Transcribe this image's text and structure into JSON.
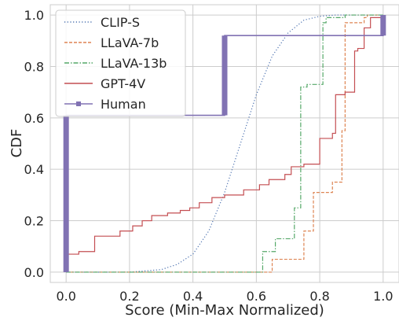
{
  "chart_data": {
    "type": "line",
    "xlabel": "Score (Min-Max Normalized)",
    "ylabel": "CDF",
    "xlim": [
      -0.05,
      1.05
    ],
    "ylim": [
      -0.04,
      1.04
    ],
    "xticks": [
      "0.0",
      "0.2",
      "0.4",
      "0.6",
      "0.8",
      "1.0"
    ],
    "yticks": [
      "0.0",
      "0.2",
      "0.4",
      "0.6",
      "0.8",
      "1.0"
    ],
    "grid": true,
    "legend_position": "upper-left",
    "series": [
      {
        "name": "CLIP-S",
        "style": "dotted",
        "color": "#4c72b0",
        "x": [
          0.0,
          0.2,
          0.3,
          0.35,
          0.4,
          0.45,
          0.5,
          0.55,
          0.6,
          0.65,
          0.7,
          0.75,
          0.8,
          0.85,
          0.9,
          0.95,
          1.0
        ],
        "y": [
          0.0,
          0.0,
          0.01,
          0.03,
          0.07,
          0.16,
          0.31,
          0.5,
          0.69,
          0.84,
          0.93,
          0.98,
          0.995,
          1.0,
          1.0,
          1.0,
          1.0
        ]
      },
      {
        "name": "LLaVA-7b",
        "style": "dashed",
        "color": "#dd8452",
        "x": [
          0.0,
          0.65,
          0.65,
          0.75,
          0.75,
          0.78,
          0.78,
          0.84,
          0.84,
          0.87,
          0.87,
          0.88,
          0.88,
          0.94,
          0.94,
          0.95,
          0.95,
          1.0
        ],
        "y": [
          0.0,
          0.0,
          0.05,
          0.05,
          0.16,
          0.16,
          0.31,
          0.31,
          0.35,
          0.35,
          0.55,
          0.55,
          0.97,
          0.97,
          0.99,
          0.99,
          1.0,
          1.0
        ]
      },
      {
        "name": "LLaVA-13b",
        "style": "dashdot",
        "color": "#55a868",
        "x": [
          0.0,
          0.62,
          0.62,
          0.66,
          0.66,
          0.72,
          0.72,
          0.74,
          0.74,
          0.76,
          0.76,
          0.81,
          0.81,
          0.82,
          0.82,
          0.88,
          0.88,
          1.0
        ],
        "y": [
          0.0,
          0.0,
          0.08,
          0.08,
          0.13,
          0.13,
          0.25,
          0.25,
          0.72,
          0.72,
          0.73,
          0.73,
          0.97,
          0.97,
          0.99,
          0.99,
          1.0,
          1.0
        ]
      },
      {
        "name": "GPT-4V",
        "style": "solid",
        "color": "#c44e52",
        "x": [
          0.0,
          0.0,
          0.04,
          0.04,
          0.09,
          0.09,
          0.17,
          0.17,
          0.21,
          0.21,
          0.24,
          0.24,
          0.27,
          0.27,
          0.32,
          0.32,
          0.36,
          0.36,
          0.39,
          0.39,
          0.42,
          0.42,
          0.46,
          0.46,
          0.5,
          0.5,
          0.56,
          0.56,
          0.61,
          0.61,
          0.64,
          0.64,
          0.69,
          0.69,
          0.71,
          0.71,
          0.75,
          0.75,
          0.8,
          0.8,
          0.84,
          0.84,
          0.85,
          0.85,
          0.88,
          0.88,
          0.91,
          0.91,
          0.92,
          0.92,
          0.94,
          0.94,
          0.96,
          0.96,
          1.0
        ],
        "y": [
          0.0,
          0.07,
          0.07,
          0.08,
          0.08,
          0.14,
          0.14,
          0.16,
          0.16,
          0.18,
          0.18,
          0.2,
          0.2,
          0.22,
          0.22,
          0.23,
          0.23,
          0.24,
          0.24,
          0.25,
          0.25,
          0.27,
          0.27,
          0.29,
          0.29,
          0.3,
          0.3,
          0.32,
          0.32,
          0.34,
          0.34,
          0.36,
          0.36,
          0.38,
          0.38,
          0.41,
          0.41,
          0.42,
          0.42,
          0.52,
          0.52,
          0.54,
          0.54,
          0.69,
          0.69,
          0.7,
          0.7,
          0.86,
          0.86,
          0.87,
          0.87,
          0.95,
          0.95,
          0.99,
          0.99
        ]
      },
      {
        "name": "Human",
        "style": "solid",
        "color": "#8172b3",
        "x": [
          0.0,
          0.0,
          0.5,
          0.5,
          1.0,
          1.0
        ],
        "y": [
          0.0,
          0.61,
          0.61,
          0.92,
          0.92,
          1.0
        ],
        "step_bars": [
          {
            "x": 0.0,
            "y_from": 0.0,
            "y_to": 0.61
          },
          {
            "x": 0.5,
            "y_from": 0.61,
            "y_to": 0.92
          },
          {
            "x": 1.0,
            "y_from": 0.92,
            "y_to": 1.0
          }
        ]
      }
    ]
  }
}
